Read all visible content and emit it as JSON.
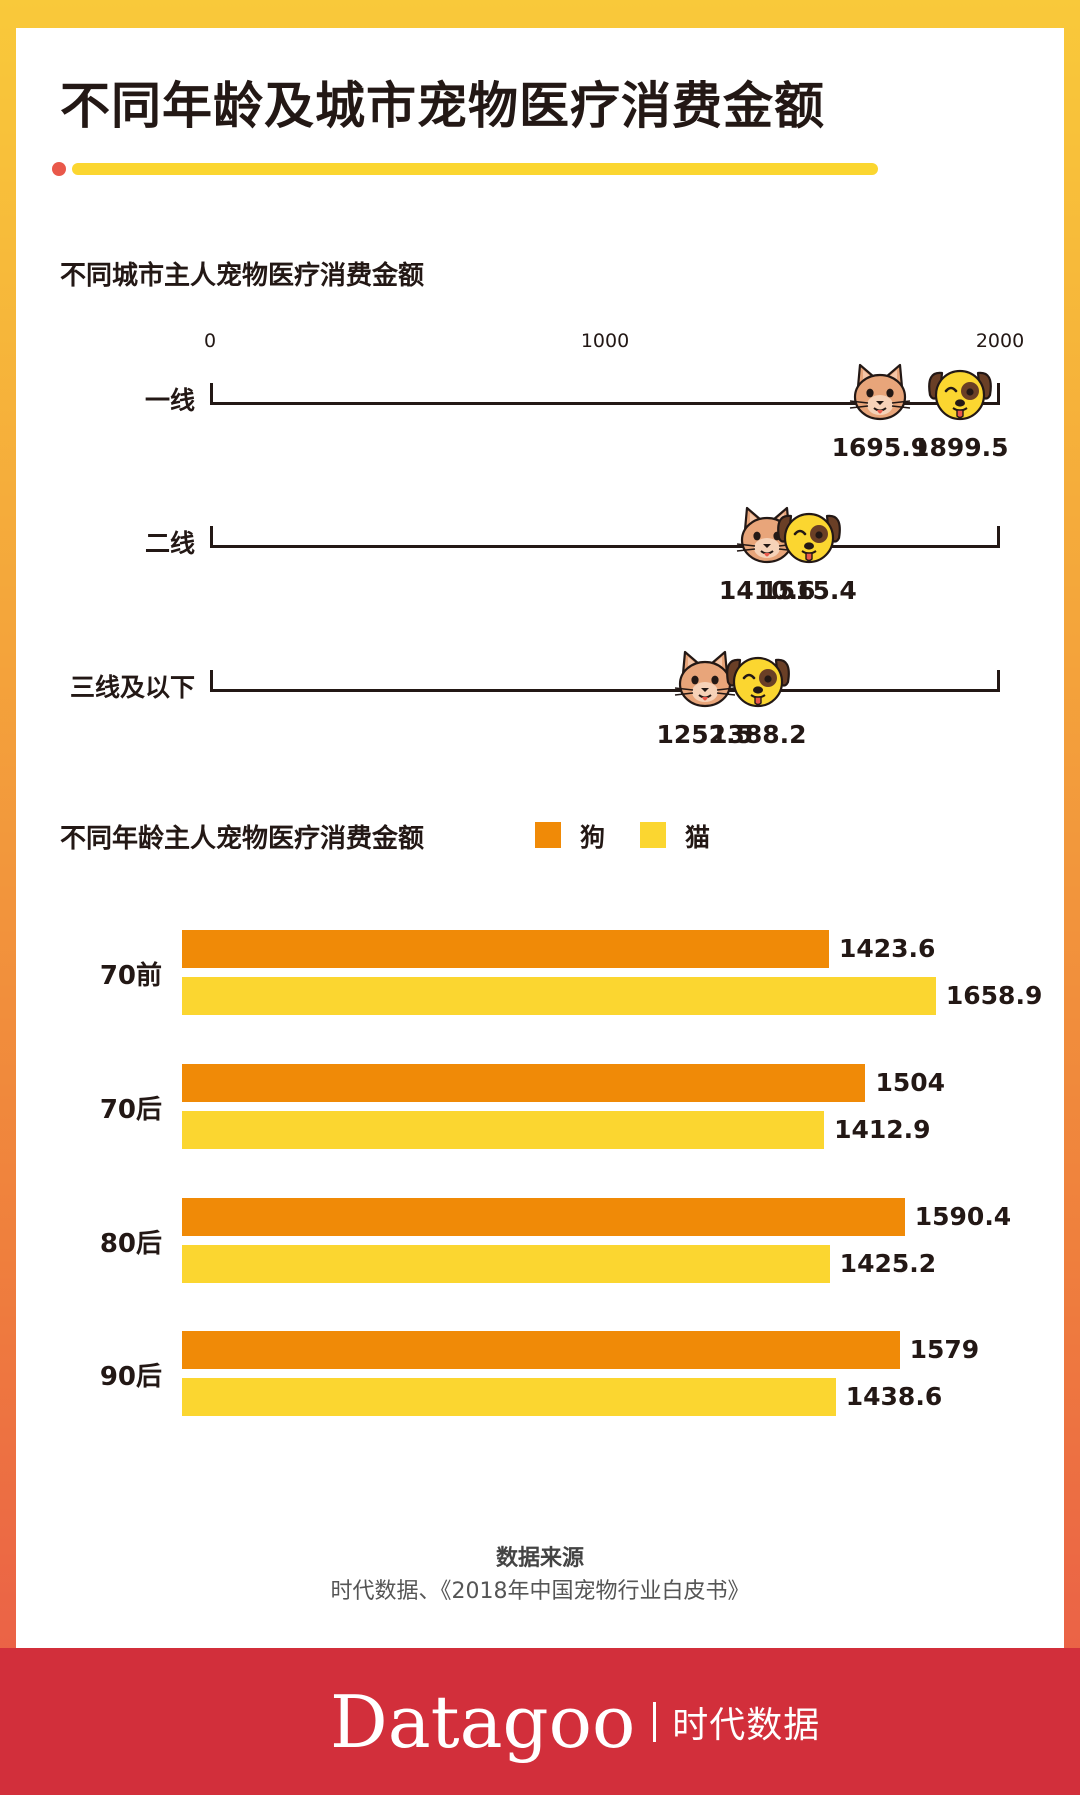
{
  "title": "不同年龄及城市宠物医疗消费金额",
  "colors": {
    "dog": "#f08a07",
    "cat": "#fbd630",
    "line": "#231815",
    "accent": "#e9584a"
  },
  "chart_data": [
    {
      "type": "scatter",
      "title": "不同城市主人宠物医疗消费金额",
      "xlim": [
        0,
        2000
      ],
      "xticks": [
        "0",
        "1000",
        "2000"
      ],
      "categories": [
        "一线",
        "二线",
        "三线及以下"
      ],
      "series": [
        {
          "name": "猫",
          "icon": "cat-face-icon",
          "values": [
            1695.9,
            1410.6,
            1252.5
          ],
          "labels": [
            "1695.9",
            "1410.6",
            "1252.5"
          ]
        },
        {
          "name": "狗",
          "icon": "dog-face-icon",
          "values": [
            1899.5,
            1515.4,
            1388.2
          ],
          "labels": [
            "1899.5",
            "1515.4",
            "1388.2"
          ]
        }
      ]
    },
    {
      "type": "bar",
      "orientation": "horizontal",
      "title": "不同年龄主人宠物医疗消费金额",
      "legend": [
        {
          "name": "狗",
          "color": "#f08a07"
        },
        {
          "name": "猫",
          "color": "#fbd630"
        }
      ],
      "xlim": [
        0,
        1800
      ],
      "categories": [
        "70前",
        "70后",
        "80后",
        "90后"
      ],
      "series": [
        {
          "name": "狗",
          "values": [
            1423.6,
            1504,
            1590.4,
            1579
          ],
          "labels": [
            "1423.6",
            "1504",
            "1590.4",
            "1579"
          ]
        },
        {
          "name": "猫",
          "values": [
            1658.9,
            1412.9,
            1425.2,
            1438.6
          ],
          "labels": [
            "1658.9",
            "1412.9",
            "1425.2",
            "1438.6"
          ]
        }
      ]
    }
  ],
  "source": {
    "title": "数据来源",
    "text": "时代数据、《2018年中国宠物行业白皮书》"
  },
  "brand": {
    "name": "Datagoo",
    "cn": "时代数据"
  }
}
